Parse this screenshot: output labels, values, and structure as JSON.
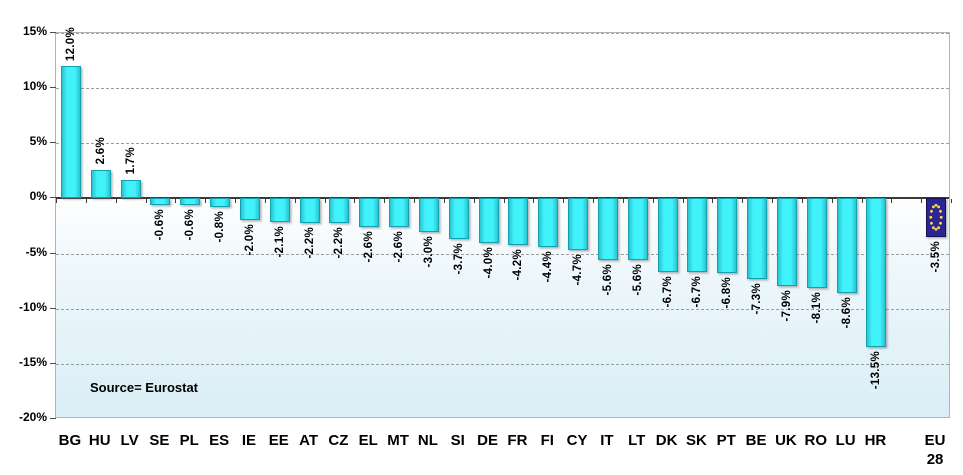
{
  "chart_data": {
    "type": "bar",
    "title": "",
    "categories": [
      "BG",
      "HU",
      "LV",
      "SE",
      "PL",
      "ES",
      "IE",
      "EE",
      "AT",
      "CZ",
      "EL",
      "MT",
      "NL",
      "SI",
      "DE",
      "FR",
      "FI",
      "CY",
      "IT",
      "LT",
      "DK",
      "SK",
      "PT",
      "BE",
      "UK",
      "RO",
      "LU",
      "HR",
      "EU\n28"
    ],
    "values": [
      12.0,
      2.6,
      1.7,
      -0.6,
      -0.6,
      -0.8,
      -2.0,
      -2.1,
      -2.2,
      -2.2,
      -2.6,
      -2.6,
      -3.0,
      -3.7,
      -4.0,
      -4.2,
      -4.4,
      -4.7,
      -5.6,
      -5.6,
      -6.7,
      -6.7,
      -6.8,
      -7.3,
      -7.9,
      -8.1,
      -8.6,
      -13.5,
      -3.5
    ],
    "data_labels": [
      "12.0%",
      "2.6%",
      "1.7%",
      "-0.6%",
      "-0.6%",
      "-0.8%",
      "-2.0%",
      "-2.1%",
      "-2.2%",
      "-2.2%",
      "-2.6%",
      "-2.6%",
      "-3.0%",
      "-3.7%",
      "-4.0%",
      "-4.2%",
      "-4.4%",
      "-4.7%",
      "-5.6%",
      "-5.6%",
      "-6.7%",
      "-6.7%",
      "-6.8%",
      "-7.3%",
      "-7.9%",
      "-8.1%",
      "-8.6%",
      "-13.5%",
      "-3.5%"
    ],
    "ylim": [
      -20,
      15
    ],
    "ytick_step": 5,
    "ytick_labels": [
      "15%",
      "10%",
      "5%",
      "0%",
      "-5%",
      "-10%",
      "-15%",
      "-20%"
    ],
    "grid": "horizontal-dashed",
    "legend": "none",
    "gap_before_last": true,
    "total_slots": 30,
    "last_bar_style": "eu-flag",
    "source_note": "Source= Eurostat"
  },
  "colors": {
    "bar_fill": "#41F2FA",
    "bar_edge": "#28C4D2",
    "bar_border": "#15A0AE",
    "eu_fill": "#2B2694",
    "eu_border": "#15104F",
    "eu_star": "#FFD84D",
    "gridline": "#9D9D9D",
    "zero_axis": "#3A3A3A",
    "plot_border": "#B3B3B3",
    "bg_top": "#FFFFFF",
    "bg_bottom": "#D9EEF6",
    "text": "#000000"
  }
}
